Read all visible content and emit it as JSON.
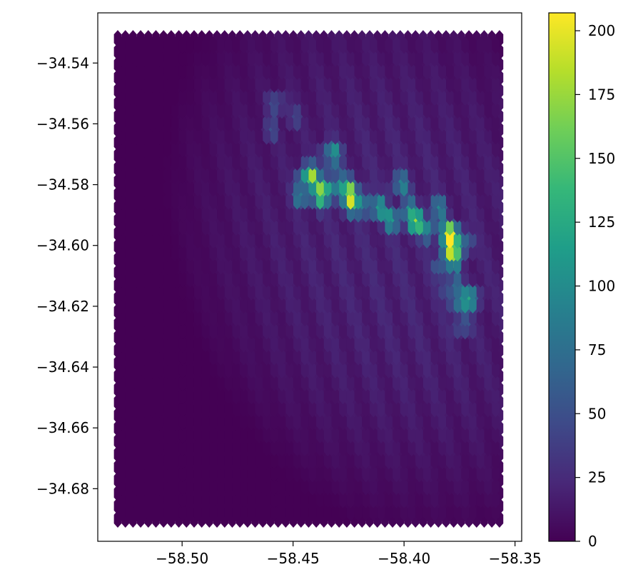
{
  "chart_data": {
    "type": "heatmap",
    "plot_kind": "hexbin",
    "title": "",
    "xlabel": "",
    "ylabel": "",
    "xlim": [
      -58.538,
      -58.347
    ],
    "ylim": [
      -34.6973,
      -34.5235
    ],
    "extent": {
      "x": [
        -58.529,
        -58.357
      ],
      "y": [
        -34.69,
        -34.532
      ]
    },
    "hexbin_gridsize": [
      50,
      37
    ],
    "x_ticks": [
      -58.5,
      -58.45,
      -58.4,
      -58.35
    ],
    "x_tick_labels": [
      "−58.50",
      "−58.45",
      "−58.40",
      "−58.35"
    ],
    "y_ticks": [
      -34.54,
      -34.56,
      -34.58,
      -34.6,
      -34.62,
      -34.64,
      -34.66,
      -34.68
    ],
    "y_tick_labels": [
      "−34.54",
      "−34.56",
      "−34.58",
      "−34.60",
      "−34.62",
      "−34.64",
      "−34.66",
      "−34.68"
    ],
    "colorbar": {
      "colormap": "viridis",
      "range": [
        0,
        207
      ],
      "ticks": [
        0,
        25,
        50,
        75,
        100,
        125,
        150,
        175,
        200
      ],
      "tick_labels": [
        "0",
        "25",
        "50",
        "75",
        "100",
        "125",
        "150",
        "175",
        "200"
      ]
    },
    "hotspots": [
      {
        "x": -58.443,
        "y": -34.578,
        "value": 185
      },
      {
        "x": -58.436,
        "y": -34.581,
        "value": 160
      },
      {
        "x": -58.43,
        "y": -34.581,
        "value": 145
      },
      {
        "x": -58.424,
        "y": -34.585,
        "value": 165
      },
      {
        "x": -58.425,
        "y": -34.582,
        "value": 150
      },
      {
        "x": -58.438,
        "y": -34.584,
        "value": 125
      },
      {
        "x": -58.445,
        "y": -34.583,
        "value": 120
      },
      {
        "x": -58.433,
        "y": -34.57,
        "value": 115
      },
      {
        "x": -58.433,
        "y": -34.574,
        "value": 95
      },
      {
        "x": -58.418,
        "y": -34.586,
        "value": 120
      },
      {
        "x": -58.412,
        "y": -34.588,
        "value": 115
      },
      {
        "x": -58.405,
        "y": -34.591,
        "value": 115
      },
      {
        "x": -58.398,
        "y": -34.589,
        "value": 110
      },
      {
        "x": -58.402,
        "y": -34.58,
        "value": 95
      },
      {
        "x": -58.395,
        "y": -34.592,
        "value": 150
      },
      {
        "x": -58.389,
        "y": -34.594,
        "value": 120
      },
      {
        "x": -58.385,
        "y": -34.588,
        "value": 90
      },
      {
        "x": -58.379,
        "y": -34.597,
        "value": 207
      },
      {
        "x": -58.379,
        "y": -34.603,
        "value": 180
      },
      {
        "x": -58.374,
        "y": -34.599,
        "value": 120
      },
      {
        "x": -58.382,
        "y": -34.607,
        "value": 95
      },
      {
        "x": -58.375,
        "y": -34.619,
        "value": 115
      },
      {
        "x": -58.37,
        "y": -34.617,
        "value": 110
      },
      {
        "x": -58.378,
        "y": -34.614,
        "value": 100
      },
      {
        "x": -58.374,
        "y": -34.626,
        "value": 75
      },
      {
        "x": -58.457,
        "y": -34.553,
        "value": 60
      },
      {
        "x": -58.45,
        "y": -34.558,
        "value": 45
      },
      {
        "x": -58.46,
        "y": -34.562,
        "value": 45
      }
    ]
  }
}
